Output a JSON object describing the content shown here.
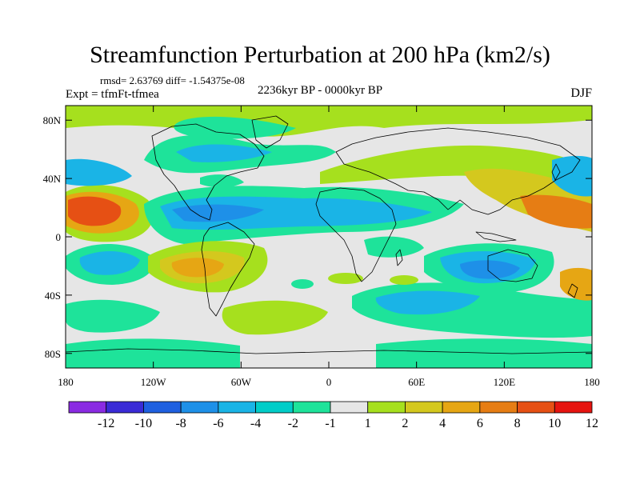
{
  "title": "Streamfunction Perturbation at 200 hPa (km2/s)",
  "stats_text": "rmsd= 2.63769 diff= -1.54375e-08",
  "experiment_text": "Expt = tfmFt-tfmea",
  "period_text": "2236kyr BP - 0000kyr BP",
  "season_text": "DJF",
  "map": {
    "projection": "cylindrical equidistant",
    "lon_range": [
      -180,
      180
    ],
    "lat_range": [
      -90,
      90
    ],
    "lon_ticks": [
      {
        "value": -180,
        "label": "180"
      },
      {
        "value": -120,
        "label": "120W"
      },
      {
        "value": -60,
        "label": "60W"
      },
      {
        "value": 0,
        "label": "0"
      },
      {
        "value": 60,
        "label": "60E"
      },
      {
        "value": 120,
        "label": "120E"
      },
      {
        "value": 180,
        "label": "180"
      }
    ],
    "lat_ticks": [
      {
        "value": 80,
        "label": "80N"
      },
      {
        "value": 40,
        "label": "40N"
      },
      {
        "value": 0,
        "label": "0"
      },
      {
        "value": -40,
        "label": "40S"
      },
      {
        "value": -80,
        "label": "80S"
      }
    ],
    "background_color": "#e6e6e6"
  },
  "colorbar": {
    "boundaries": [
      "-12",
      "-10",
      "-8",
      "-6",
      "-4",
      "-2",
      "-1",
      "1",
      "2",
      "4",
      "6",
      "8",
      "10",
      "12"
    ],
    "colors": [
      "#8a2be2",
      "#3a2bd6",
      "#1f60e0",
      "#1e90e8",
      "#1ab4e6",
      "#00cdc8",
      "#1ee39a",
      "#e6e6e6",
      "#a6e01e",
      "#d4c81e",
      "#e6a614",
      "#e67d14",
      "#e65014",
      "#e6140f"
    ]
  },
  "chart_data": {
    "type": "heatmap",
    "field": "200 hPa streamfunction perturbation (km2/s)",
    "note": "values estimated from filled contour colours (lon, lat in degrees)",
    "anomaly_centers": [
      {
        "lon": -168,
        "lat": 20,
        "value": 10
      },
      {
        "lon": 165,
        "lat": 18,
        "value": 9
      },
      {
        "lon": 140,
        "lat": 30,
        "value": 5
      },
      {
        "lon": -90,
        "lat": -22,
        "value": 8
      },
      {
        "lon": -70,
        "lat": -18,
        "value": 3
      },
      {
        "lon": -130,
        "lat": 52,
        "value": 2
      },
      {
        "lon": -30,
        "lat": -55,
        "value": 2
      },
      {
        "lon": 10,
        "lat": -35,
        "value": 2
      },
      {
        "lon": 40,
        "lat": 58,
        "value": 2
      },
      {
        "lon": 160,
        "lat": -40,
        "value": 6
      },
      {
        "lon": -65,
        "lat": 15,
        "value": -5
      },
      {
        "lon": 10,
        "lat": 18,
        "value": -3
      },
      {
        "lon": -160,
        "lat": -10,
        "value": -4
      },
      {
        "lon": -155,
        "lat": 30,
        "value": -4
      },
      {
        "lon": 165,
        "lat": 40,
        "value": -4
      },
      {
        "lon": 100,
        "lat": -30,
        "value": -5
      },
      {
        "lon": -60,
        "lat": 55,
        "value": -3
      },
      {
        "lon": -145,
        "lat": -48,
        "value": -3
      },
      {
        "lon": -140,
        "lat": -80,
        "value": -3
      }
    ]
  }
}
